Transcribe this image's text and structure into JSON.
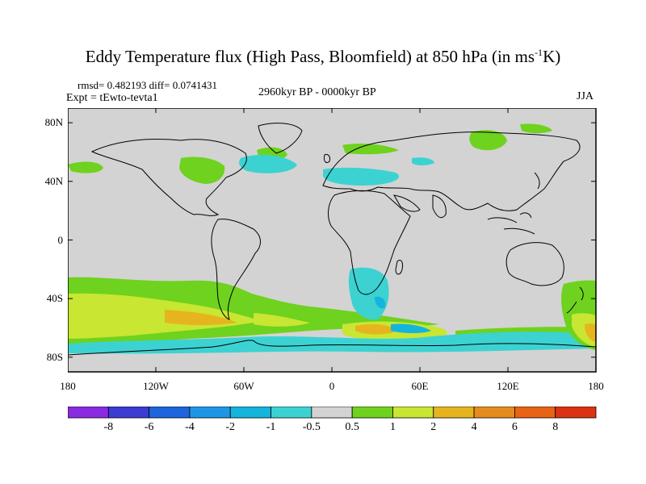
{
  "title": {
    "main": "Eddy Temperature flux (High Pass, Bloomfield) at 850 hPa (in ms",
    "sup": "-1",
    "end": "K)"
  },
  "stats": "rmsd= 0.482193 diff= 0.0741431",
  "experiment": "Expt = tEwto-tevta1",
  "period": "2960kyr BP - 0000kyr BP",
  "season": "JJA",
  "map": {
    "lat_ticks": [
      "80N",
      "40N",
      "0",
      "40S",
      "80S"
    ],
    "lon_ticks": [
      "180",
      "120W",
      "60W",
      "0",
      "60E",
      "120E",
      "180"
    ],
    "lat_values": [
      80,
      40,
      0,
      -40,
      -80
    ],
    "lon_values": [
      -180,
      -120,
      -60,
      0,
      60,
      120,
      180
    ],
    "background_color": "#d3d3d3"
  },
  "colorbar": {
    "labels": [
      "-8",
      "-6",
      "-4",
      "-2",
      "-1",
      "-0.5",
      "0.5",
      "1",
      "2",
      "4",
      "6",
      "8"
    ],
    "colors": [
      "#8a2be2",
      "#3c3cd2",
      "#1e64dc",
      "#1e96e6",
      "#14b4dc",
      "#3cd2d2",
      "#d3d3d3",
      "#6ed21e",
      "#c8e632",
      "#e6b41e",
      "#e68c1e",
      "#e66414",
      "#dc3214"
    ]
  }
}
